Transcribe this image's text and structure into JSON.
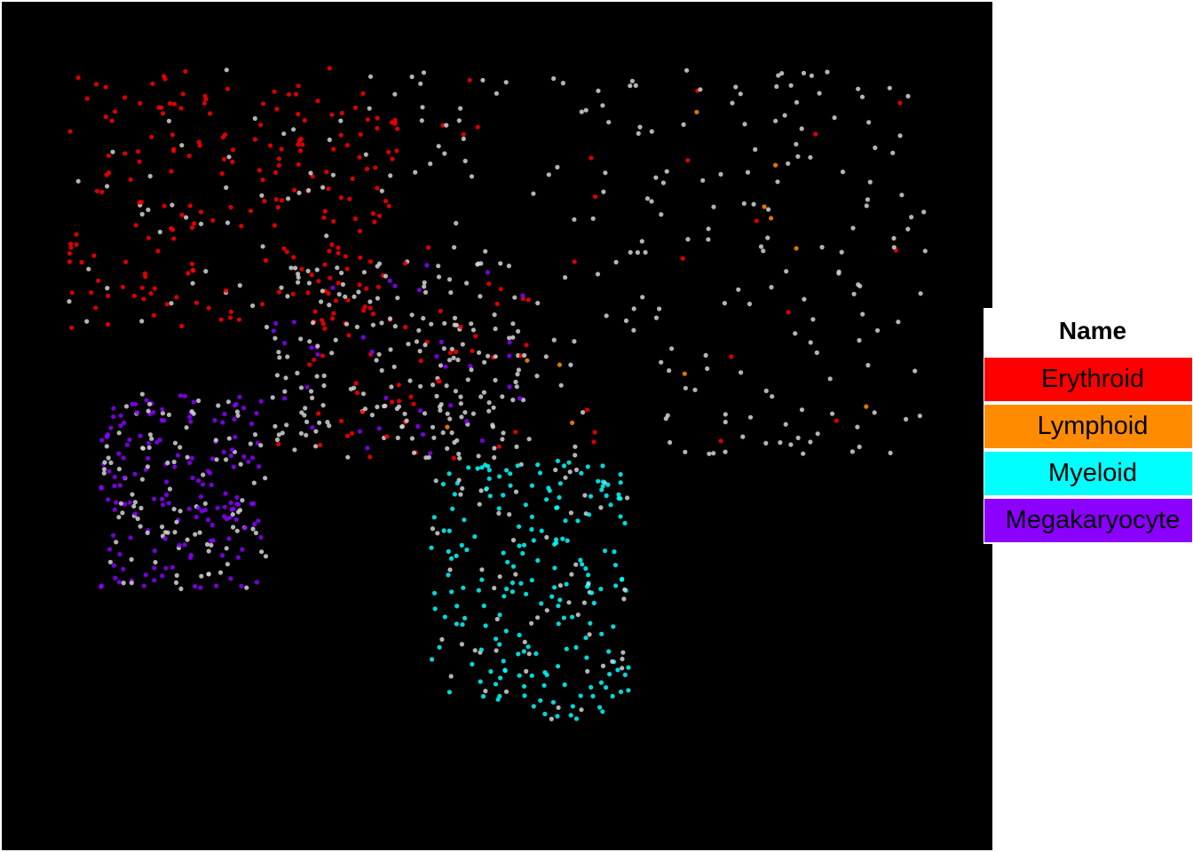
{
  "chart_data": {
    "type": "scatter",
    "title": "",
    "xlabel": "",
    "ylabel": "",
    "background": "#000000",
    "grid": false,
    "legend": {
      "title": "Name",
      "placement": "right",
      "entries": [
        {
          "label": "Erythroid",
          "color": "#FF0000"
        },
        {
          "label": "Lymphoid",
          "color": "#FF8C00"
        },
        {
          "label": "Myeloid",
          "color": "#00FFFF"
        },
        {
          "label": "Megakaryocyte",
          "color": "#8B00FF"
        }
      ]
    },
    "neutral_color": "#D3D3D3",
    "regions": [
      {
        "x": [
          -5,
          0
        ],
        "y": [
          3,
          7
        ],
        "weights": {
          "Erythroid": 0.8,
          "Neutral": 0.2
        }
      },
      {
        "x": [
          -4.5,
          -2
        ],
        "y": [
          -1,
          2
        ],
        "weights": {
          "Megakaryocyte": 0.6,
          "Neutral": 0.4
        }
      },
      {
        "x": [
          0,
          8
        ],
        "y": [
          1,
          7
        ],
        "weights": {
          "Neutral": 0.85,
          "Lymphoid": 0.05,
          "Erythroid": 0.1
        }
      },
      {
        "x": [
          0.5,
          3.5
        ],
        "y": [
          -3,
          1
        ],
        "weights": {
          "Myeloid": 0.75,
          "Neutral": 0.25
        }
      },
      {
        "x": [
          -2,
          2
        ],
        "y": [
          1,
          4
        ],
        "weights": {
          "Neutral": 0.7,
          "Erythroid": 0.2,
          "Megakaryocyte": 0.1
        }
      }
    ]
  }
}
